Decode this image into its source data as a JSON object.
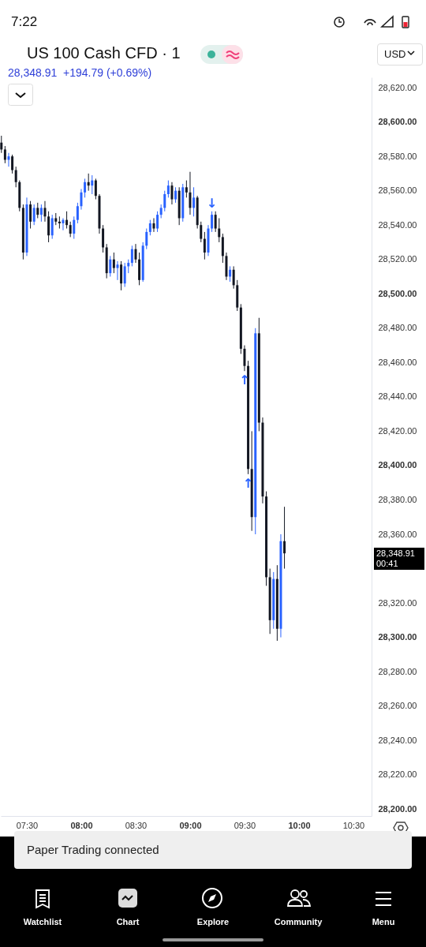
{
  "chart_data": {
    "type": "candlestick",
    "title": "US 100 Cash CFD · 1",
    "subtitle": "28,348.91  +194.79 (+0.69%)",
    "x": [
      7.2667,
      7.3,
      7.3333,
      7.3667,
      7.4,
      7.4333,
      7.4667,
      7.5,
      7.5333,
      7.5667,
      7.6,
      7.6333,
      7.6667,
      7.7,
      7.7333,
      7.7667,
      7.8,
      7.8333,
      7.8667,
      7.9,
      7.9333,
      7.9667,
      8,
      8.0333,
      8.0667,
      8.1,
      8.1333,
      8.1667,
      8.2,
      8.2333,
      8.2667,
      8.3,
      8.3333,
      8.3667,
      8.4,
      8.4333,
      8.4667,
      8.5,
      8.5333,
      8.5667,
      8.6,
      8.6333,
      8.6667,
      8.7,
      8.7333,
      8.7667,
      8.8,
      8.8333,
      8.8667,
      8.9,
      8.9333,
      8.9667,
      9,
      9.0333,
      9.0667,
      9.1,
      9.1333,
      9.1667,
      9.2,
      9.2333,
      9.2667,
      9.3,
      9.3333,
      9.3667,
      9.4,
      9.4333,
      9.4667,
      9.5,
      9.5333,
      9.5667,
      9.6,
      9.6333,
      9.6667,
      9.7,
      9.7333,
      9.7667,
      9.8,
      9.8333,
      9.8667
    ],
    "ohlc": [
      [
        28588,
        28592,
        28582,
        28584
      ],
      [
        28584,
        28586,
        28576,
        28578
      ],
      [
        28578,
        28582,
        28574,
        28580
      ],
      [
        28580,
        28581,
        28570,
        28572
      ],
      [
        28572,
        28574,
        28562,
        28565
      ],
      [
        28565,
        28566,
        28548,
        28550
      ],
      [
        28550,
        28552,
        28520,
        28524
      ],
      [
        28524,
        28556,
        28522,
        28552
      ],
      [
        28552,
        28554,
        28538,
        28542
      ],
      [
        28542,
        28552,
        28540,
        28550
      ],
      [
        28550,
        28553,
        28544,
        28546
      ],
      [
        28546,
        28552,
        28542,
        28550
      ],
      [
        28550,
        28554,
        28542,
        28545
      ],
      [
        28545,
        28548,
        28530,
        28534
      ],
      [
        28534,
        28546,
        28532,
        28544
      ],
      [
        28544,
        28547,
        28540,
        28542
      ],
      [
        28542,
        28545,
        28538,
        28541
      ],
      [
        28541,
        28544,
        28537,
        28543
      ],
      [
        28543,
        28548,
        28538,
        28540
      ],
      [
        28540,
        28542,
        28533,
        28535
      ],
      [
        28535,
        28545,
        28532,
        28543
      ],
      [
        28543,
        28553,
        28541,
        28551
      ],
      [
        28551,
        28561,
        28549,
        28559
      ],
      [
        28559,
        28567,
        28556,
        28565
      ],
      [
        28565,
        28570,
        28560,
        28563
      ],
      [
        28563,
        28569,
        28558,
        28566
      ],
      [
        28566,
        28567,
        28555,
        28557
      ],
      [
        28557,
        28558,
        28535,
        28538
      ],
      [
        28538,
        28540,
        28524,
        28527
      ],
      [
        28527,
        28529,
        28509,
        28512
      ],
      [
        28512,
        28522,
        28510,
        28520
      ],
      [
        28520,
        28524,
        28512,
        28515
      ],
      [
        28515,
        28519,
        28508,
        28517
      ],
      [
        28517,
        28519,
        28502,
        28506
      ],
      [
        28506,
        28518,
        28504,
        28516
      ],
      [
        28516,
        28520,
        28512,
        28518
      ],
      [
        28518,
        28528,
        28516,
        28526
      ],
      [
        28526,
        28529,
        28518,
        28520
      ],
      [
        28520,
        28524,
        28505,
        28508
      ],
      [
        28508,
        28530,
        28507,
        28528
      ],
      [
        28528,
        28538,
        28526,
        28536
      ],
      [
        28536,
        28543,
        28534,
        28541
      ],
      [
        28541,
        28544,
        28536,
        28538
      ],
      [
        28538,
        28548,
        28536,
        28546
      ],
      [
        28546,
        28552,
        28544,
        28550
      ],
      [
        28550,
        28560,
        28548,
        28558
      ],
      [
        28558,
        28566,
        28556,
        28563
      ],
      [
        28563,
        28565,
        28552,
        28555
      ],
      [
        28555,
        28562,
        28553,
        28560
      ],
      [
        28560,
        28562,
        28540,
        28544
      ],
      [
        28544,
        28564,
        28542,
        28562
      ],
      [
        28562,
        28566,
        28556,
        28559
      ],
      [
        28559,
        28571,
        28546,
        28550
      ],
      [
        28550,
        28562,
        28545,
        28556
      ],
      [
        28556,
        28557,
        28538,
        28540
      ],
      [
        28540,
        28542,
        28530,
        28532
      ],
      [
        28532,
        28536,
        28520,
        28524
      ],
      [
        28524,
        28540,
        28522,
        28538
      ],
      [
        28538,
        28548,
        28536,
        28546
      ],
      [
        28546,
        28548,
        28536,
        28538
      ],
      [
        28538,
        28544,
        28530,
        28533
      ],
      [
        28533,
        28535,
        28518,
        28522
      ],
      [
        28522,
        28524,
        28508,
        28510
      ],
      [
        28510,
        28516,
        28507,
        28514
      ],
      [
        28514,
        28516,
        28503,
        28505
      ],
      [
        28505,
        28508,
        28490,
        28492
      ],
      [
        28492,
        28494,
        28465,
        28468
      ],
      [
        28468,
        28470,
        28455,
        28458
      ],
      [
        28458,
        28461,
        28395,
        28398
      ],
      [
        28398,
        28420,
        28362,
        28370
      ],
      [
        28370,
        28480,
        28360,
        28477
      ],
      [
        28477,
        28486,
        28420,
        28425
      ],
      [
        28425,
        28428,
        28378,
        28382
      ],
      [
        28382,
        28385,
        28330,
        28335
      ],
      [
        28335,
        28340,
        28302,
        28310
      ],
      [
        28310,
        28338,
        28305,
        28334
      ],
      [
        28334,
        28342,
        28298,
        28305
      ],
      [
        28305,
        28360,
        28300,
        28356
      ],
      [
        28356,
        28376,
        28340,
        28348.91
      ]
    ],
    "colors": [
      "#131722",
      "#131722",
      "#2962ff",
      "#131722",
      "#131722",
      "#131722",
      "#131722",
      "#2962ff",
      "#131722",
      "#2962ff",
      "#131722",
      "#2962ff",
      "#131722",
      "#131722",
      "#2962ff",
      "#131722",
      "#131722",
      "#2962ff",
      "#131722",
      "#131722",
      "#2962ff",
      "#2962ff",
      "#2962ff",
      "#2962ff",
      "#131722",
      "#2962ff",
      "#131722",
      "#131722",
      "#131722",
      "#131722",
      "#2962ff",
      "#131722",
      "#2962ff",
      "#131722",
      "#2962ff",
      "#2962ff",
      "#2962ff",
      "#131722",
      "#131722",
      "#2962ff",
      "#2962ff",
      "#2962ff",
      "#131722",
      "#2962ff",
      "#2962ff",
      "#2962ff",
      "#2962ff",
      "#131722",
      "#2962ff",
      "#131722",
      "#2962ff",
      "#131722",
      "#131722",
      "#2962ff",
      "#131722",
      "#131722",
      "#131722",
      "#2962ff",
      "#2962ff",
      "#131722",
      "#131722",
      "#131722",
      "#131722",
      "#2962ff",
      "#131722",
      "#131722",
      "#131722",
      "#131722",
      "#131722",
      "#131722",
      "#2962ff",
      "#131722",
      "#131722",
      "#131722",
      "#131722",
      "#2962ff",
      "#131722",
      "#2962ff",
      "#131722"
    ],
    "xlim": [
      7.261,
      10.667
    ],
    "xticks": [
      {
        "value": 7.5,
        "label": "07:30"
      },
      {
        "value": 8,
        "label": "08:00"
      },
      {
        "value": 8.5,
        "label": "08:30"
      },
      {
        "value": 9,
        "label": "09:00"
      },
      {
        "value": 9.5,
        "label": "09:30"
      },
      {
        "value": 10,
        "label": "10:00"
      },
      {
        "value": 10.5,
        "label": "10:30"
      }
    ],
    "ylim": [
      28196,
      28626
    ],
    "yticks": [
      {
        "value": 28200,
        "label": "28,200.00"
      },
      {
        "value": 28220,
        "label": "28,220.00"
      },
      {
        "value": 28240,
        "label": "28,240.00"
      },
      {
        "value": 28260,
        "label": "28,260.00"
      },
      {
        "value": 28280,
        "label": "28,280.00"
      },
      {
        "value": 28300,
        "label": "28,300.00"
      },
      {
        "value": 28320,
        "label": "28,320.00"
      },
      {
        "value": 28360,
        "label": "28,360.00"
      },
      {
        "value": 28380,
        "label": "28,380.00"
      },
      {
        "value": 28400,
        "label": "28,400.00"
      },
      {
        "value": 28420,
        "label": "28,420.00"
      },
      {
        "value": 28440,
        "label": "28,440.00"
      },
      {
        "value": 28460,
        "label": "28,460.00"
      },
      {
        "value": 28480,
        "label": "28,480.00"
      },
      {
        "value": 28500,
        "label": "28,500.00"
      },
      {
        "value": 28520,
        "label": "28,520.00"
      },
      {
        "value": 28540,
        "label": "28,540.00"
      },
      {
        "value": 28560,
        "label": "28,560.00"
      },
      {
        "value": 28580,
        "label": "28,580.00"
      },
      {
        "value": 28600,
        "label": "28,600.00"
      },
      {
        "value": 28620,
        "label": "28,620.00"
      }
    ],
    "annotations": [
      "7:22",
      "USD",
      "Paper Trading connected",
      "Watchlist",
      "Chart",
      "Explore",
      "Community",
      "Menu",
      "28,348.91",
      "00:41",
      {
        "text": "↓",
        "x": 9.2,
        "y": 28548
      },
      {
        "text": "↑",
        "x": 9.5,
        "y": 28455
      },
      {
        "text": "↑",
        "x": 9.5333,
        "y": 28395
      }
    ]
  }
}
